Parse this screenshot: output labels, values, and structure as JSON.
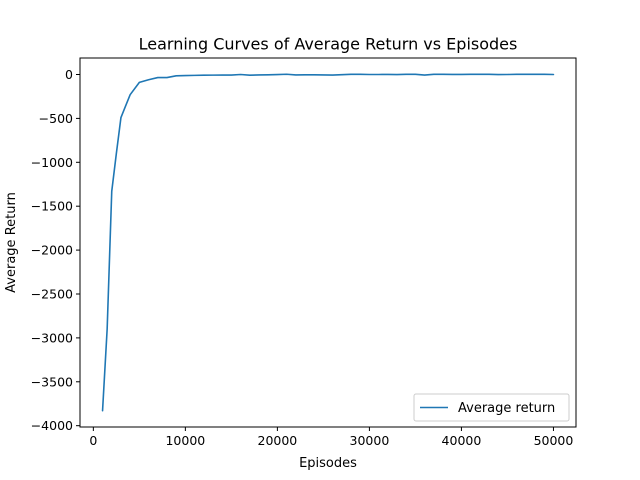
{
  "chart_data": {
    "type": "line",
    "title": "Learning Curves of Average Return vs Episodes",
    "xlabel": "Episodes",
    "ylabel": "Average Return",
    "xlim": [
      -1450,
      52450
    ],
    "ylim": [
      -4015,
      188
    ],
    "x_ticks": [
      0,
      10000,
      20000,
      30000,
      40000,
      50000
    ],
    "x_tick_labels": [
      "0",
      "10000",
      "20000",
      "30000",
      "40000",
      "50000"
    ],
    "y_ticks": [
      0,
      -500,
      -1000,
      -1500,
      -2000,
      -2500,
      -3000,
      -3500,
      -4000
    ],
    "y_tick_labels": [
      "0",
      "−500",
      "−1000",
      "−1500",
      "−2000",
      "−2500",
      "−3000",
      "−3500",
      "−4000"
    ],
    "grid": false,
    "legend_position": "lower-right",
    "series": [
      {
        "name": "Average return",
        "color": "#1f77b4",
        "x": [
          1000,
          1500,
          2000,
          2500,
          3000,
          3500,
          4000,
          5000,
          6000,
          7000,
          8000,
          9000,
          10000,
          11000,
          12000,
          13000,
          14000,
          15000,
          16000,
          17000,
          18000,
          19000,
          20000,
          21000,
          22000,
          23000,
          24000,
          25000,
          26000,
          27000,
          28000,
          29000,
          30000,
          31000,
          32000,
          33000,
          34000,
          35000,
          36000,
          37000,
          38000,
          39000,
          40000,
          41000,
          42000,
          43000,
          44000,
          45000,
          46000,
          47000,
          48000,
          49000,
          50000
        ],
        "y": [
          -3830,
          -2900,
          -1330,
          -900,
          -490,
          -360,
          -230,
          -90,
          -60,
          -35,
          -35,
          -15,
          -12,
          -10,
          -8,
          -7,
          -6,
          -6,
          0,
          -8,
          -5,
          -3,
          -1,
          3,
          -5,
          -3,
          -3,
          -5,
          -6,
          -2,
          2,
          2,
          0,
          0,
          1,
          -1,
          2,
          2,
          -6,
          2,
          2,
          1,
          1,
          2,
          2,
          2,
          -1,
          0,
          2,
          2,
          2,
          2,
          0
        ]
      }
    ]
  }
}
